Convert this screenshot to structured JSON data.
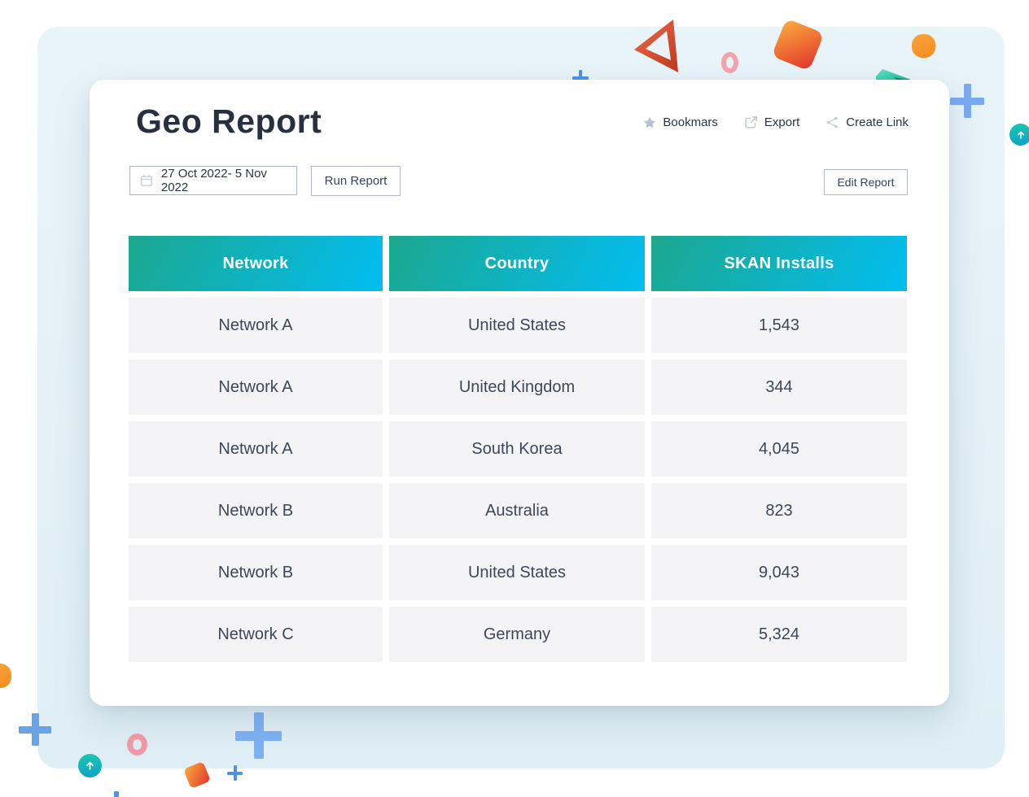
{
  "report": {
    "title": "Geo Report",
    "date_range": "27 Oct 2022- 5 Nov 2022",
    "run_button": "Run Report",
    "edit_button": "Edit Report",
    "actions": [
      {
        "icon": "star-icon",
        "label": "Bookmars"
      },
      {
        "icon": "export-icon",
        "label": "Export"
      },
      {
        "icon": "share-icon",
        "label": "Create Link"
      }
    ]
  },
  "table": {
    "columns": [
      "Network",
      "Country",
      "SKAN Installs"
    ],
    "rows": [
      [
        "Network A",
        "United States",
        "1,543"
      ],
      [
        "Network A",
        "United Kingdom",
        "344"
      ],
      [
        "Network A",
        "South Korea",
        "4,045"
      ],
      [
        "Network B",
        "Australia",
        "823"
      ],
      [
        "Network B",
        "United States",
        "9,043"
      ],
      [
        "Network C",
        "Germany",
        "5,324"
      ]
    ],
    "header_gradient": [
      "#1ca78e",
      "#02bdf1"
    ]
  },
  "colors": {
    "panel_bg": "#e4f1f6",
    "card_bg": "#ffffff",
    "row_bg": "#f4f4f6",
    "title_text": "#27303f",
    "body_text": "#3c4759",
    "icon_gray": "#bcc4d2",
    "decor_blue": "#4c92e6",
    "decor_light_blue": "#7db1f4",
    "decor_orange": "#f89b2e",
    "decor_red": "#e2402f",
    "decor_pink": "#f2a0ab",
    "decor_teal": "#17bfa0"
  }
}
